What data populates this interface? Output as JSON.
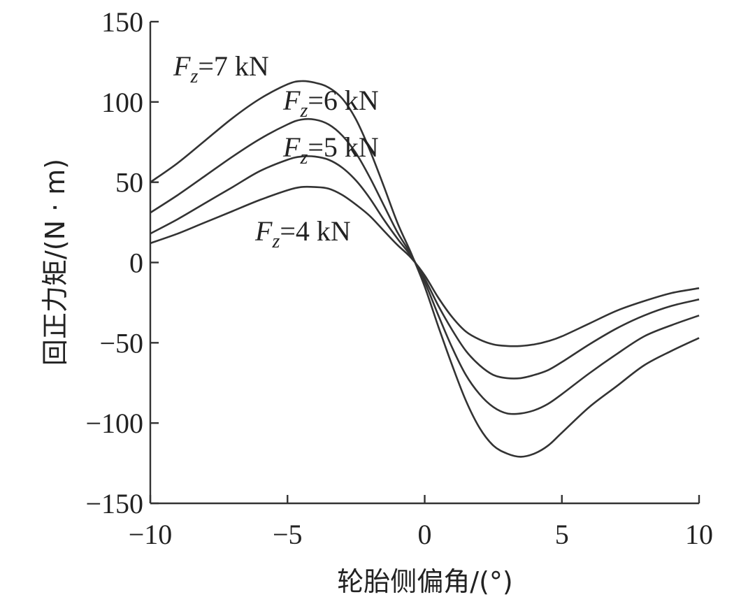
{
  "chart_data": {
    "type": "line",
    "xlabel": "轮胎侧偏角/(°)",
    "ylabel": "回正力矩/(N · m)",
    "xlim": [
      -10,
      10
    ],
    "ylim": [
      -150,
      150
    ],
    "xticks": [
      -10,
      -5,
      0,
      5,
      10
    ],
    "yticks": [
      -150,
      -100,
      -50,
      0,
      50,
      100,
      150
    ],
    "xtick_labels": [
      "−10",
      "−5",
      "0",
      "5",
      "10"
    ],
    "ytick_labels": [
      "−150",
      "−100",
      "−50",
      "0",
      "50",
      "100",
      "150"
    ],
    "grid": false,
    "series": [
      {
        "name": "Fz=7 kN",
        "label_var": "F",
        "label_sub": "z",
        "label_rest": "=7 kN",
        "x": [
          -10,
          -9,
          -8,
          -7,
          -6,
          -5,
          -4.5,
          -4,
          -3.5,
          -3,
          -2.5,
          -2,
          -1.5,
          -1,
          -0.5,
          0,
          0.5,
          1,
          1.5,
          2,
          2.5,
          3,
          3.5,
          4,
          4.5,
          5,
          6,
          7,
          8,
          9,
          10
        ],
        "y": [
          50,
          62,
          76,
          90,
          102,
          111,
          113,
          112,
          109,
          102,
          89,
          70,
          48,
          25,
          6,
          -15,
          -40,
          -64,
          -86,
          -103,
          -114,
          -119,
          -121,
          -119,
          -114,
          -106,
          -90,
          -77,
          -64,
          -55,
          -47
        ]
      },
      {
        "name": "Fz=6 kN",
        "label_var": "F",
        "label_sub": "z",
        "label_rest": "=6 kN",
        "x": [
          -10,
          -9,
          -8,
          -7,
          -6,
          -5,
          -4.5,
          -4,
          -3.5,
          -3,
          -2.5,
          -2,
          -1.5,
          -1,
          -0.5,
          0,
          0.5,
          1,
          1.5,
          2,
          2.5,
          3,
          3.5,
          4,
          4.5,
          5,
          6,
          7,
          8,
          9,
          10
        ],
        "y": [
          31,
          42,
          54,
          66,
          77,
          86,
          89,
          89,
          86,
          79,
          68,
          53,
          36,
          19,
          5,
          -12,
          -33,
          -53,
          -70,
          -82,
          -90,
          -94,
          -94,
          -92,
          -88,
          -82,
          -69,
          -57,
          -46,
          -39,
          -33
        ]
      },
      {
        "name": "Fz=5 kN",
        "label_var": "F",
        "label_sub": "z",
        "label_rest": "=5 kN",
        "x": [
          -10,
          -9,
          -8,
          -7,
          -6,
          -5,
          -4.5,
          -4,
          -3.5,
          -3,
          -2.5,
          -2,
          -1.5,
          -1,
          -0.5,
          0,
          0.5,
          1,
          1.5,
          2,
          2.5,
          3,
          3.5,
          4,
          4.5,
          5,
          6,
          7,
          8,
          9,
          10
        ],
        "y": [
          18,
          27,
          37,
          47,
          57,
          64,
          66,
          66,
          64,
          59,
          51,
          40,
          27,
          15,
          4,
          -10,
          -27,
          -42,
          -55,
          -64,
          -70,
          -72,
          -72,
          -70,
          -67,
          -62,
          -51,
          -41,
          -33,
          -27,
          -23
        ]
      },
      {
        "name": "Fz=4 kN",
        "label_var": "F",
        "label_sub": "z",
        "label_rest": "=4 kN",
        "x": [
          -10,
          -9,
          -8,
          -7,
          -6,
          -5,
          -4.5,
          -4,
          -3.5,
          -3,
          -2.5,
          -2,
          -1.5,
          -1,
          -0.5,
          0,
          0.5,
          1,
          1.5,
          2,
          2.5,
          3,
          3.5,
          4,
          4.5,
          5,
          6,
          7,
          8,
          9,
          10
        ],
        "y": [
          12,
          18,
          25,
          32,
          39,
          45,
          47,
          47,
          46,
          42,
          36,
          29,
          20,
          11,
          3,
          -8,
          -22,
          -34,
          -43,
          -48,
          -51,
          -52,
          -52,
          -51,
          -49,
          -46,
          -38,
          -30,
          -24,
          -19,
          -16
        ]
      }
    ]
  }
}
